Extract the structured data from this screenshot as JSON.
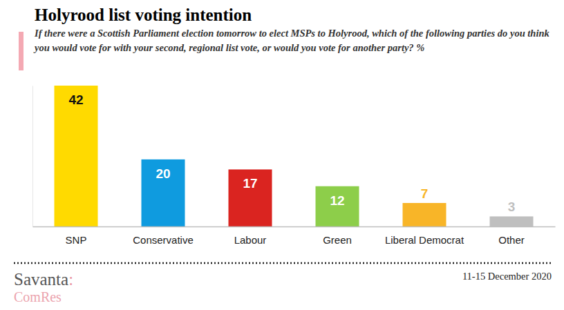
{
  "chart_data": {
    "type": "bar",
    "title": "Holyrood list voting intention",
    "subtitle": "If there were a Scottish Parliament election tomorrow to elect MSPs to Holyrood, which of the following parties do you think you would vote for with your second, regional list vote, or would you vote for another party? %",
    "categories": [
      "SNP",
      "Conservative",
      "Labour",
      "Green",
      "Liberal Democrat",
      "Other"
    ],
    "values": [
      42,
      20,
      17,
      12,
      7,
      3
    ],
    "colors": [
      "#FFDA00",
      "#0F9BDF",
      "#DA2420",
      "#8DCE4A",
      "#F8B528",
      "#BFBFBF"
    ],
    "ylim": [
      0,
      42
    ],
    "yticks": [],
    "data_labels": true,
    "tick_labels": "x",
    "logo": [
      "Savanta:",
      "ComRes"
    ],
    "date": "11-15 December 2020"
  }
}
